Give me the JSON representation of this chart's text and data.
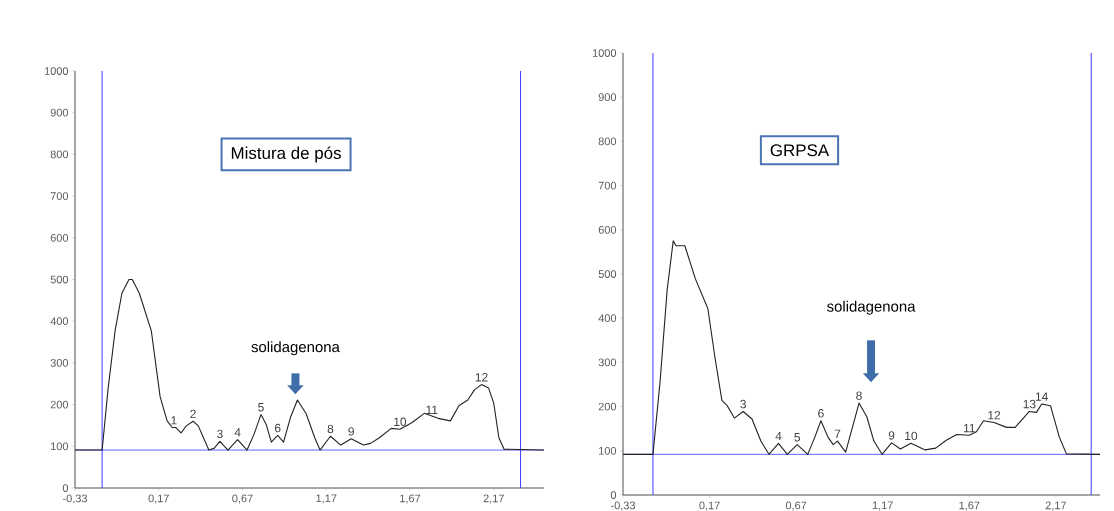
{
  "chart_data": [
    {
      "type": "line",
      "title": "Mistura de pós",
      "x": [
        -0.33,
        -0.168,
        -0.133,
        -0.091,
        -0.05,
        -0.008,
        0.012,
        0.054,
        0.126,
        0.178,
        0.22,
        0.251,
        0.272,
        0.303,
        0.334,
        0.375,
        0.406,
        0.469,
        0.5,
        0.535,
        0.583,
        0.641,
        0.697,
        0.738,
        0.78,
        0.811,
        0.842,
        0.88,
        0.915,
        0.956,
        0.998,
        1.05,
        1.102,
        1.133,
        1.195,
        1.257,
        1.319,
        1.392,
        1.434,
        1.485,
        1.558,
        1.61,
        1.683,
        1.755,
        1.838,
        1.911,
        1.963,
        2.015,
        2.056,
        2.097,
        2.139,
        2.17,
        2.201,
        2.232,
        2.47
      ],
      "series": [
        {
          "color": "#222222",
          "values": [
            91,
            91,
            236,
            376,
            467,
            500,
            500,
            467,
            376,
            219,
            161,
            145,
            145,
            132,
            149,
            160,
            149,
            91,
            95,
            112,
            91,
            116,
            91,
            128,
            176,
            153,
            110,
            126,
            110,
            169,
            211,
            178,
            120,
            91,
            124,
            103,
            118,
            103,
            107,
            120,
            143,
            141,
            157,
            179,
            167,
            161,
            198,
            211,
            236,
            248,
            240,
            203,
            120,
            93,
            91
          ]
        }
      ],
      "xlim": [
        -0.33,
        2.47
      ],
      "ylim": [
        0,
        1000
      ],
      "xticks": [
        {
          "value": -0.33,
          "label": "-0,33"
        },
        {
          "value": 0.17,
          "label": "0,17"
        },
        {
          "value": 0.67,
          "label": "0,67"
        },
        {
          "value": 1.17,
          "label": "1,17"
        },
        {
          "value": 1.67,
          "label": "1,67"
        },
        {
          "value": 2.17,
          "label": "2,17"
        }
      ],
      "yticks": [
        0,
        100,
        200,
        300,
        400,
        500,
        600,
        700,
        800,
        900,
        1000
      ],
      "ref_lines": [
        {
          "axis": "x",
          "value": -0.168,
          "color": "#3b3bff"
        },
        {
          "axis": "x",
          "value": 2.33,
          "color": "#3b3bff"
        },
        {
          "axis": "y",
          "value": 91,
          "color": "#3b3bff"
        }
      ],
      "annotations": [
        "solidagenona",
        {
          "text": "1",
          "x": 0.26,
          "y": 145
        },
        {
          "text": "2",
          "x": 0.375,
          "y": 160
        },
        {
          "text": "3",
          "x": 0.535,
          "y": 112
        },
        {
          "text": "4",
          "x": 0.641,
          "y": 116
        },
        {
          "text": "5",
          "x": 0.78,
          "y": 176
        },
        {
          "text": "6",
          "x": 0.88,
          "y": 126
        },
        {
          "text": "8",
          "x": 1.195,
          "y": 124
        },
        {
          "text": "9",
          "x": 1.319,
          "y": 118
        },
        {
          "text": "10",
          "x": 1.61,
          "y": 141
        },
        {
          "text": "11",
          "x": 1.8,
          "y": 170
        },
        {
          "text": "12",
          "x": 2.097,
          "y": 248
        }
      ]
    },
    {
      "type": "line",
      "title": "GRPSA",
      "x": [
        -0.33,
        -0.157,
        -0.116,
        -0.075,
        -0.04,
        -0.024,
        0.027,
        0.088,
        0.16,
        0.2,
        0.241,
        0.272,
        0.313,
        0.364,
        0.415,
        0.466,
        0.513,
        0.568,
        0.619,
        0.676,
        0.737,
        0.778,
        0.813,
        0.854,
        0.884,
        0.909,
        0.956,
        0.997,
        1.033,
        1.078,
        1.119,
        1.166,
        1.221,
        1.272,
        1.333,
        1.415,
        1.476,
        1.537,
        1.598,
        1.67,
        1.711,
        1.752,
        1.813,
        1.885,
        1.935,
        2.017,
        2.058,
        2.088,
        2.139,
        2.19,
        2.231,
        2.425
      ],
      "series": [
        {
          "color": "#222222",
          "values": [
            92,
            92,
            256,
            464,
            575,
            564,
            564,
            489,
            422,
            314,
            214,
            202,
            174,
            189,
            172,
            122,
            92,
            117,
            92,
            114,
            92,
            131,
            168,
            131,
            114,
            122,
            97,
            156,
            208,
            177,
            122,
            92,
            118,
            104,
            117,
            102,
            106,
            124,
            137,
            135,
            143,
            168,
            164,
            153,
            153,
            189,
            187,
            206,
            202,
            131,
            93,
            92
          ]
        }
      ],
      "xlim": [
        -0.33,
        2.425
      ],
      "ylim": [
        0,
        1000
      ],
      "xticks": [
        {
          "value": -0.33,
          "label": "-0,33"
        },
        {
          "value": 0.17,
          "label": "0,17"
        },
        {
          "value": 0.67,
          "label": "0,67"
        },
        {
          "value": 1.17,
          "label": "1,17"
        },
        {
          "value": 1.67,
          "label": "1,67"
        },
        {
          "value": 2.17,
          "label": "2,17"
        }
      ],
      "yticks": [
        0,
        100,
        200,
        300,
        400,
        500,
        600,
        700,
        800,
        900,
        1000
      ],
      "ref_lines": [
        {
          "axis": "x",
          "value": -0.157,
          "color": "#3b3bff"
        },
        {
          "axis": "x",
          "value": 2.374,
          "color": "#3b3bff"
        },
        {
          "axis": "y",
          "value": 92,
          "color": "#3b3bff"
        }
      ],
      "annotations": [
        "solidagenona",
        {
          "text": "3",
          "x": 0.364,
          "y": 189
        },
        {
          "text": "4",
          "x": 0.568,
          "y": 117
        },
        {
          "text": "5",
          "x": 0.676,
          "y": 114
        },
        {
          "text": "6",
          "x": 0.813,
          "y": 168
        },
        {
          "text": "7",
          "x": 0.909,
          "y": 122
        },
        {
          "text": "8",
          "x": 1.033,
          "y": 208
        },
        {
          "text": "9",
          "x": 1.221,
          "y": 118
        },
        {
          "text": "10",
          "x": 1.333,
          "y": 117
        },
        {
          "text": "11",
          "x": 1.67,
          "y": 135
        },
        {
          "text": "12",
          "x": 1.813,
          "y": 164
        },
        {
          "text": "13",
          "x": 2.017,
          "y": 189
        },
        {
          "text": "14",
          "x": 2.088,
          "y": 206
        }
      ]
    }
  ]
}
